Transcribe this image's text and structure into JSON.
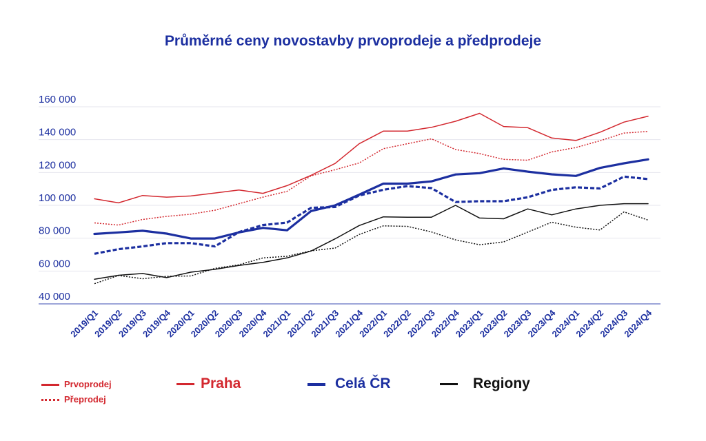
{
  "chart_data": {
    "type": "line",
    "title": "Průměrné ceny novostavby prvoprodeje a předprodeje",
    "categories": [
      "2019/Q1",
      "2019/Q2",
      "2019/Q3",
      "2019/Q4",
      "2020/Q1",
      "2020/Q2",
      "2020/Q3",
      "2020/Q4",
      "2021/Q1",
      "2021/Q2",
      "2021/Q3",
      "2021/Q4",
      "2022/Q1",
      "2022/Q2",
      "2022/Q3",
      "2022/Q4",
      "2023/Q1",
      "2023/Q2",
      "2023/Q3",
      "2023/Q4",
      "2024/Q1",
      "2024/Q2",
      "2024/Q3",
      "2024/Q4"
    ],
    "ylim": [
      40000,
      160000
    ],
    "yticks": [
      40000,
      60000,
      80000,
      100000,
      120000,
      140000,
      160000
    ],
    "ytick_labels": [
      "40 000",
      "60 000",
      "80 000",
      "100 000",
      "120 000",
      "140 000",
      "160 000"
    ],
    "grid": true,
    "series": [
      {
        "name": "Praha",
        "style": "solid",
        "color": "#d3282f",
        "width": 1.5,
        "values": [
          104000,
          101500,
          106000,
          105000,
          105700,
          107500,
          109300,
          107300,
          112000,
          118300,
          125500,
          137500,
          145200,
          145200,
          147500,
          151200,
          156000,
          148000,
          147300,
          141000,
          139500,
          144500,
          150700,
          154300
        ]
      },
      {
        "name": "Praha",
        "style": "dotted",
        "color": "#d3282f",
        "width": 1.5,
        "values": [
          89300,
          88000,
          91400,
          93300,
          94600,
          97000,
          101000,
          105000,
          108500,
          118000,
          121700,
          125800,
          134500,
          137500,
          140500,
          134000,
          131500,
          128000,
          127500,
          132500,
          135200,
          139300,
          144000,
          145000
        ]
      },
      {
        "name": "Celá ČR",
        "style": "solid",
        "color": "#1c2fa0",
        "width": 3.2,
        "values": [
          82600,
          83500,
          84500,
          82800,
          79800,
          79800,
          83500,
          86300,
          84800,
          96500,
          100000,
          106500,
          113200,
          113200,
          114600,
          118800,
          119600,
          122500,
          120500,
          118900,
          117900,
          122800,
          125600,
          128000
        ]
      },
      {
        "name": "Celá ČR",
        "style": "dotted",
        "color": "#1c2fa0",
        "width": 3.2,
        "values": [
          70500,
          73300,
          75000,
          77000,
          77000,
          75000,
          83700,
          88000,
          89500,
          98500,
          99000,
          106000,
          109500,
          111700,
          110500,
          102000,
          102500,
          102500,
          104900,
          109400,
          111000,
          110300,
          117500,
          116000
        ]
      },
      {
        "name": "Regiony",
        "style": "solid",
        "color": "#111111",
        "width": 1.5,
        "values": [
          55000,
          57400,
          58500,
          56000,
          59300,
          61000,
          63400,
          65300,
          68000,
          72200,
          79600,
          87700,
          93000,
          92800,
          92800,
          100000,
          92300,
          91800,
          97800,
          94200,
          97800,
          100000,
          101000,
          101000
        ]
      },
      {
        "name": "Regiony",
        "style": "dotted",
        "color": "#111111",
        "width": 1.5,
        "values": [
          52300,
          57300,
          55300,
          56800,
          57000,
          61600,
          63800,
          68000,
          69000,
          72300,
          74000,
          82300,
          87500,
          87200,
          83800,
          79000,
          76000,
          77700,
          83700,
          89700,
          86700,
          85000,
          96000,
          91000
        ]
      }
    ]
  },
  "legend": {
    "prvoprodej": "Prvoprodej",
    "preprodej": "Přeprodej",
    "praha": "Praha",
    "cela_cr": "Celá ČR",
    "regiony": "Regiony"
  },
  "colors": {
    "red": "#d3282f",
    "blue": "#1c2fa0",
    "black": "#111111",
    "grid": "#e6e6ee"
  }
}
